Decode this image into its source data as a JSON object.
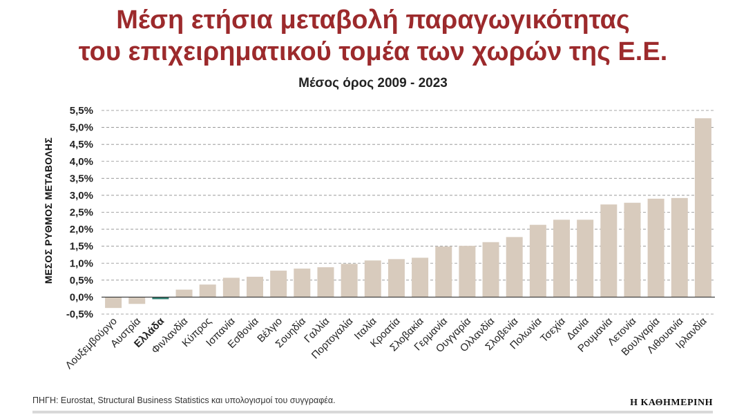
{
  "chart_data": {
    "type": "bar",
    "title_lines": [
      "Μέση ετήσια μεταβολή παραγωγικότητας",
      "του επιχειρηματικού τομέα των χωρών της Ε.Ε."
    ],
    "subtitle": "Μέσος όρος 2009 - 2023",
    "ylabel": "ΜΕΣΟΣ ΡΥΘΜΟΣ ΜΕΤΑΒΟΛΗΣ",
    "xlabel": "",
    "ylim": [
      -0.5,
      5.5
    ],
    "yticks": [
      -0.5,
      0.0,
      0.5,
      1.0,
      1.5,
      2.0,
      2.5,
      3.0,
      3.5,
      4.0,
      4.5,
      5.0,
      5.5
    ],
    "ytick_labels": [
      "-0,5%",
      "0,0%",
      "0,5%",
      "1,0%",
      "1,5%",
      "2,0%",
      "2,5%",
      "3,0%",
      "3,5%",
      "4,0%",
      "4,5%",
      "5,0%",
      "5,5%"
    ],
    "grid": true,
    "categories": [
      "Λουξεμβούργο",
      "Αυστρία",
      "Ελλάδα",
      "Φινλανδία",
      "Κύπρος",
      "Ισπανία",
      "Εσθονία",
      "Βέλγιο",
      "Σουηδία",
      "Γαλλία",
      "Πορτογαλία",
      "Ιταλία",
      "Κροατία",
      "Σλοβακία",
      "Γερμανία",
      "Ουγγαρία",
      "Ολλανδία",
      "Σλοβενία",
      "Πολωνία",
      "Τσεχία",
      "Δανία",
      "Ρουμανία",
      "Λετονία",
      "Βουλγαρία",
      "Λιθουανία",
      "Ιρλανδία"
    ],
    "values": [
      -0.32,
      -0.2,
      -0.05,
      0.22,
      0.37,
      0.57,
      0.6,
      0.78,
      0.84,
      0.88,
      0.98,
      1.08,
      1.12,
      1.16,
      1.49,
      1.51,
      1.62,
      1.77,
      2.13,
      2.28,
      2.28,
      2.73,
      2.78,
      2.9,
      2.92,
      5.27
    ],
    "highlight": "Ελλάδα",
    "colors": {
      "bar": "#d8cbbd",
      "highlight": "#2e7d6f",
      "grid": "#8a8a8a",
      "axis": "#333333"
    }
  },
  "source": "ΠΗΓΗ: Eurostat, Structural Business Statistics και υπολογισμοί του συγγραφέα.",
  "brand": "Η ΚΑΘΗΜΕΡΙΝΗ"
}
